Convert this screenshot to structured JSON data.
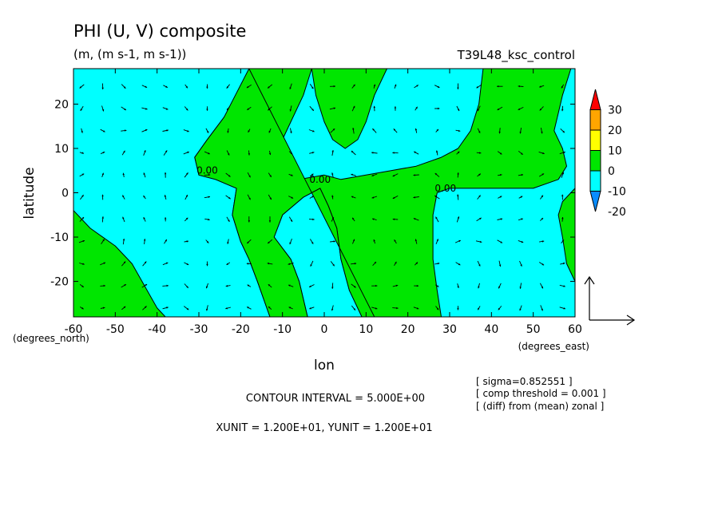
{
  "chart_data": {
    "type": "heatmap",
    "title": "PHI (U, V) composite",
    "subtitle": "(m, (m s-1, m s-1))",
    "run_label": "T39L48_ksc_control",
    "xlabel": "lon",
    "ylabel": "latitude",
    "xunit_label": "(degrees_east)",
    "yunit_label": "(degrees_north)",
    "xlim": [
      -60,
      60
    ],
    "ylim": [
      -28,
      28
    ],
    "x_ticks": [
      -60,
      -50,
      -40,
      -30,
      -20,
      -10,
      0,
      10,
      20,
      30,
      40,
      50,
      60
    ],
    "y_ticks": [
      -20,
      -10,
      0,
      10,
      20
    ],
    "x_tick_labels": [
      "-60",
      "-50",
      "-40",
      "-30",
      "-20",
      "-10",
      "0",
      "10",
      "20",
      "30",
      "40",
      "50",
      "60"
    ],
    "y_tick_labels": [
      "-20",
      "-10",
      "0",
      "10",
      "20"
    ],
    "colorbar": {
      "levels": [
        -20,
        -10,
        0,
        10,
        20,
        30
      ],
      "labels": [
        "-20",
        "-10",
        "0",
        "10",
        "20",
        "30"
      ],
      "colors": [
        "#0a8cff",
        "#00ffff",
        "#00e600",
        "#ffff00",
        "#ffa500",
        "#ff0000"
      ]
    },
    "field_colors": {
      "negative": "#00ffff",
      "positive": "#00e600",
      "contour": "#000000"
    },
    "contour_labels": [
      {
        "text": "0.00",
        "lon": -28,
        "lat": 5
      },
      {
        "text": "0.00",
        "lon": -1,
        "lat": 3
      },
      {
        "text": "0.00",
        "lon": 29,
        "lat": 1
      }
    ],
    "positive_regions": [
      [
        [
          -60,
          -4
        ],
        [
          -56,
          -8
        ],
        [
          -50,
          -12
        ],
        [
          -46,
          -16
        ],
        [
          -43,
          -21
        ],
        [
          -40,
          -26
        ],
        [
          -38,
          -28
        ],
        [
          -60,
          -28
        ]
      ],
      [
        [
          -31,
          8
        ],
        [
          -28,
          12
        ],
        [
          -24,
          17
        ],
        [
          -20,
          22
        ],
        [
          -18,
          28
        ],
        [
          -3,
          28
        ],
        [
          -5,
          22
        ],
        [
          -8,
          16
        ],
        [
          -11,
          10
        ],
        [
          -12,
          5
        ],
        [
          -10,
          4
        ],
        [
          -6,
          3
        ],
        [
          0,
          4
        ],
        [
          4,
          3
        ],
        [
          10,
          4
        ],
        [
          16,
          5
        ],
        [
          22,
          6
        ],
        [
          28,
          8
        ],
        [
          32,
          10
        ],
        [
          35,
          14
        ],
        [
          37,
          20
        ],
        [
          38,
          28
        ],
        [
          59,
          28
        ],
        [
          57,
          22
        ],
        [
          56,
          18
        ],
        [
          55,
          14
        ],
        [
          57,
          10
        ],
        [
          58,
          6
        ],
        [
          56,
          3
        ],
        [
          50,
          1
        ],
        [
          40,
          1
        ],
        [
          30,
          1
        ],
        [
          27,
          0
        ],
        [
          26,
          -5
        ],
        [
          26,
          -15
        ],
        [
          27,
          -22
        ],
        [
          28,
          -28
        ],
        [
          12,
          -28
        ],
        [
          9,
          -28
        ],
        [
          6,
          -22
        ],
        [
          4,
          -15
        ],
        [
          3,
          -8
        ],
        [
          1,
          -3
        ],
        [
          -1,
          1
        ],
        [
          -5,
          -1
        ],
        [
          -10,
          -5
        ],
        [
          -12,
          -10
        ],
        [
          -8,
          -15
        ],
        [
          -6,
          -20
        ],
        [
          -4,
          -28
        ],
        [
          -13,
          -28
        ],
        [
          -16,
          -20
        ],
        [
          -18,
          -15
        ],
        [
          -20,
          -11
        ],
        [
          -22,
          -5
        ],
        [
          -21,
          1
        ],
        [
          -26,
          3
        ],
        [
          -30,
          4
        ]
      ],
      [
        [
          -18,
          28
        ],
        [
          -24,
          17
        ],
        [
          -28,
          12
        ],
        [
          -31,
          8
        ],
        [
          -30,
          4
        ],
        [
          -26,
          3
        ],
        [
          -21,
          1
        ],
        [
          -22,
          -5
        ],
        [
          -20,
          -11
        ],
        [
          -18,
          -15
        ],
        [
          -16,
          -20
        ],
        [
          -13,
          -28
        ],
        [
          -4,
          -28
        ],
        [
          -6,
          -20
        ],
        [
          -8,
          -15
        ],
        [
          -12,
          -10
        ],
        [
          -10,
          -5
        ],
        [
          -5,
          -1
        ],
        [
          -1,
          1
        ],
        [
          1,
          -3
        ],
        [
          3,
          -8
        ],
        [
          4,
          -15
        ],
        [
          6,
          -22
        ],
        [
          9,
          -28
        ],
        [
          12,
          -28
        ],
        [
          12,
          -28
        ]
      ],
      [
        [
          15,
          28
        ],
        [
          12,
          22
        ],
        [
          10,
          16
        ],
        [
          8,
          12
        ],
        [
          5,
          10
        ],
        [
          2,
          12
        ],
        [
          0,
          16
        ],
        [
          -2,
          22
        ],
        [
          -3,
          28
        ]
      ],
      [
        [
          60,
          -20
        ],
        [
          58,
          -16
        ],
        [
          57,
          -10
        ],
        [
          56,
          -5
        ],
        [
          57,
          -2
        ],
        [
          60,
          1
        ]
      ]
    ],
    "vector_field": {
      "field": "(U, V)",
      "x_unit": "1.200E+01",
      "y_unit": "1.200E+01",
      "lon_range": [
        -58,
        58
      ],
      "lat_range": [
        -26,
        26
      ],
      "grid_step": 5
    }
  },
  "footer": {
    "contour_interval": "CONTOUR INTERVAL = 5.000E+00",
    "vector_units": "XUNIT = 1.200E+01, YUNIT = 1.200E+01",
    "notes": [
      "[ sigma=0.852551 ]",
      "[ comp threshold = 0.001 ]",
      "[ (diff) from (mean) zonal ]"
    ]
  }
}
